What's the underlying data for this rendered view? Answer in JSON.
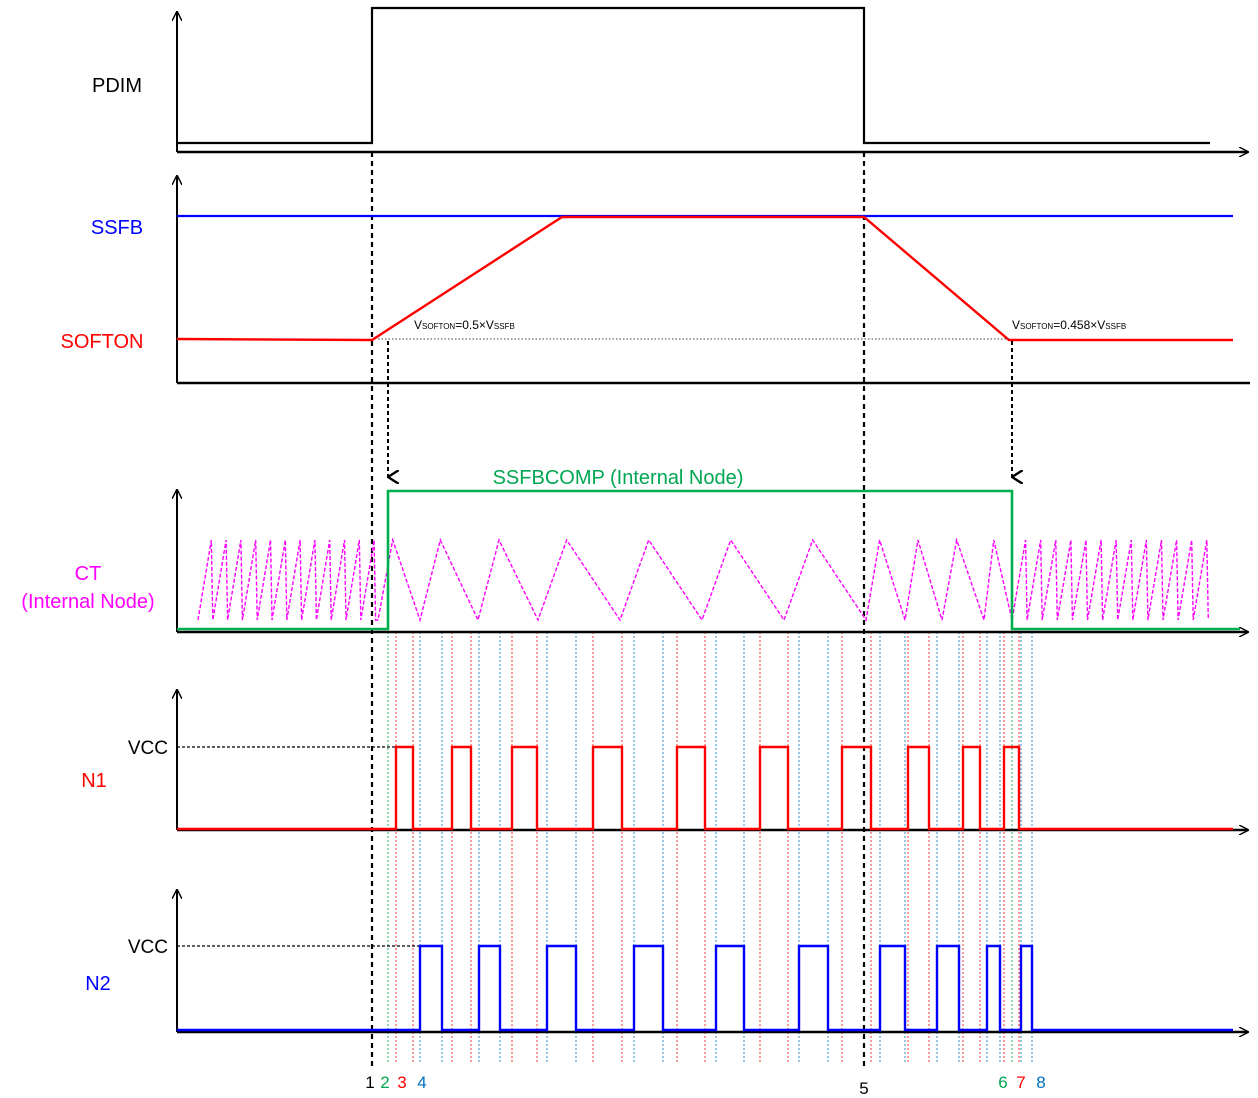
{
  "labels": {
    "pdim": "PDIM",
    "ssfb": "SSFB",
    "softon": "SOFTON",
    "ct_line1": "CT",
    "ct_line2": "(Internal Node)",
    "ssfbcomp": "SSFBCOMP (Internal Node)",
    "n1": "N1",
    "n2": "N2",
    "vcc_n1": "VCC",
    "vcc_n2": "VCC"
  },
  "annotations": {
    "on": {
      "v": "V",
      "sub1": "SOFTON",
      "mid": "=0.5×V",
      "sub2": "SSFB"
    },
    "off": {
      "v": "V",
      "sub1": "SOFTON",
      "mid": "=0.458×V",
      "sub2": "SSFB"
    }
  },
  "markers": [
    {
      "text": "1",
      "color": "#000000"
    },
    {
      "text": "2",
      "color": "#00a651"
    },
    {
      "text": "3",
      "color": "#ff0000"
    },
    {
      "text": "4",
      "color": "#0070c0"
    },
    {
      "text": "5",
      "color": "#000000"
    },
    {
      "text": "6",
      "color": "#00a651"
    },
    {
      "text": "7",
      "color": "#ff0000"
    },
    {
      "text": "8",
      "color": "#0070c0"
    }
  ],
  "colors": {
    "pdim": "#000000",
    "ssfb": "#0000ff",
    "softon": "#ff0000",
    "ct": "#ff00ff",
    "ssfbcomp": "#00b050",
    "n1": "#ff0000",
    "n2": "#0000ff"
  }
}
